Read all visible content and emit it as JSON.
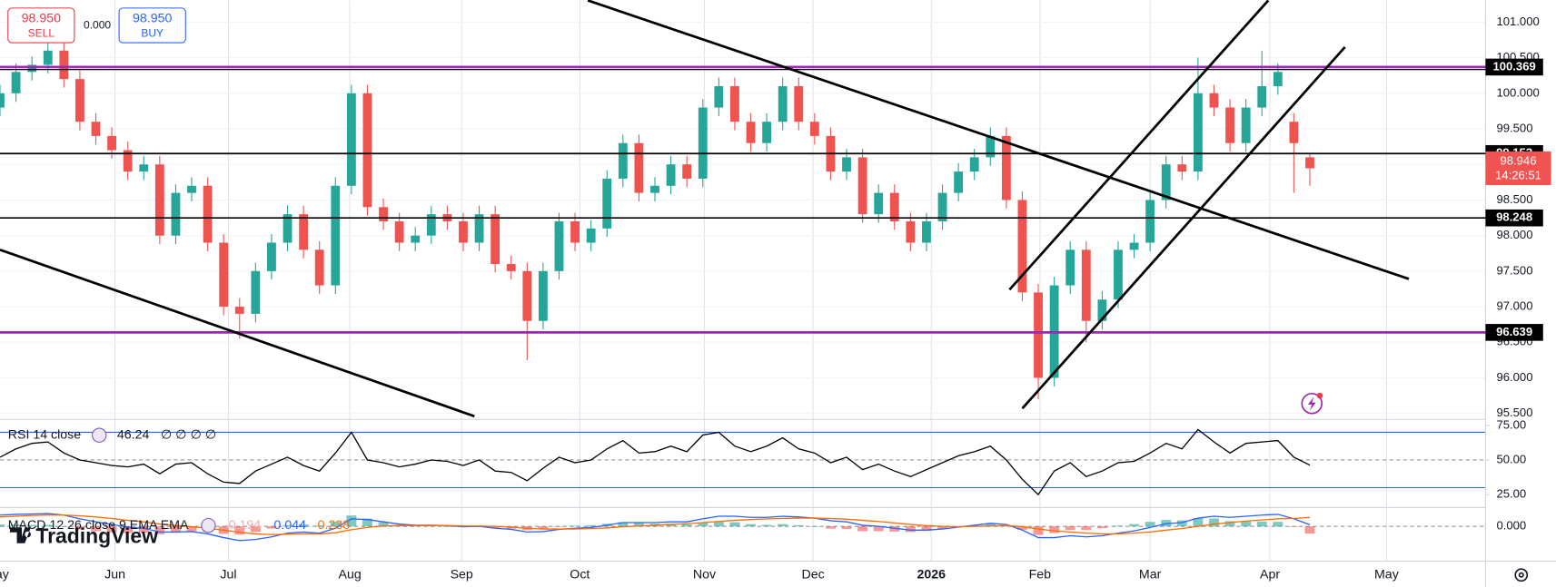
{
  "trade_panel": {
    "sell_price": "98.950",
    "sell_label": "SELL",
    "spread": "0.000",
    "buy_price": "98.950",
    "buy_label": "BUY"
  },
  "branding": "TradingView",
  "chart_data": {
    "type": "candlestick",
    "up_color": "#26a69a",
    "down_color": "#ef5350",
    "xlim": [
      0,
      93
    ],
    "xticks": [
      {
        "value": -0.2,
        "label": "May"
      },
      {
        "value": 7.2,
        "label": "Jun"
      },
      {
        "value": 14.3,
        "label": "Jul"
      },
      {
        "value": 21.9,
        "label": "Aug"
      },
      {
        "value": 28.9,
        "label": "Sep"
      },
      {
        "value": 36.3,
        "label": "Oct"
      },
      {
        "value": 44.1,
        "label": "Nov"
      },
      {
        "value": 50.9,
        "label": "Dec"
      },
      {
        "value": 58.3,
        "label": "2026",
        "bold": true
      },
      {
        "value": 65.1,
        "label": "Feb"
      },
      {
        "value": 72.0,
        "label": "Mar"
      },
      {
        "value": 79.5,
        "label": "Apr"
      },
      {
        "value": 86.8,
        "label": "May"
      }
    ],
    "ylim": [
      95.43,
      101.31
    ],
    "yticks": [
      {
        "value": 95.5,
        "label": "95.500"
      },
      {
        "value": 96,
        "label": "96.000"
      },
      {
        "value": 96.5,
        "label": "96.500"
      },
      {
        "value": 97,
        "label": "97.000"
      },
      {
        "value": 97.5,
        "label": "97.500"
      },
      {
        "value": 98,
        "label": "98.000"
      },
      {
        "value": 98.5,
        "label": "98.500"
      },
      {
        "value": 99,
        "label": "99.000"
      },
      {
        "value": 99.5,
        "label": "99.500"
      },
      {
        "value": 100,
        "label": "100.000"
      },
      {
        "value": 100.5,
        "label": "100.500"
      },
      {
        "value": 101,
        "label": "101.000"
      }
    ],
    "candles": {
      "open": [
        99.8,
        100.0,
        100.3,
        100.4,
        100.6,
        100.2,
        99.6,
        99.4,
        99.2,
        98.9,
        99.0,
        98.0,
        98.6,
        98.7,
        97.9,
        97.0,
        96.9,
        97.5,
        97.9,
        98.3,
        97.8,
        97.3,
        98.7,
        100.0,
        98.4,
        98.2,
        97.9,
        98.0,
        98.3,
        98.2,
        97.9,
        98.3,
        97.6,
        97.5,
        96.8,
        97.5,
        98.2,
        97.9,
        98.1,
        98.8,
        99.3,
        98.6,
        98.7,
        99.0,
        98.8,
        99.8,
        100.1,
        99.6,
        99.3,
        99.6,
        100.1,
        99.6,
        99.4,
        98.9,
        99.1,
        98.3,
        98.6,
        98.2,
        97.9,
        98.2,
        98.6,
        98.9,
        99.1,
        99.4,
        98.5,
        97.2,
        96.0,
        97.3,
        97.8,
        96.8,
        97.1,
        97.8,
        97.9,
        98.5,
        99.0,
        98.9,
        100.0,
        99.8,
        99.3,
        99.8,
        100.1,
        99.6,
        99.1
      ],
      "high": [
        100.12,
        100.42,
        100.52,
        100.72,
        100.72,
        100.32,
        99.72,
        99.52,
        99.32,
        99.12,
        99.12,
        98.72,
        98.82,
        98.82,
        98.02,
        97.12,
        97.62,
        98.02,
        98.42,
        98.42,
        97.92,
        98.82,
        100.12,
        100.12,
        98.52,
        98.32,
        98.12,
        98.42,
        98.42,
        98.32,
        98.42,
        98.42,
        97.72,
        97.62,
        97.62,
        98.32,
        98.32,
        98.22,
        98.92,
        99.42,
        99.42,
        98.82,
        99.12,
        99.12,
        99.92,
        100.22,
        100.22,
        99.72,
        99.72,
        100.22,
        100.22,
        99.72,
        99.52,
        99.22,
        99.22,
        98.72,
        98.72,
        98.32,
        98.32,
        98.72,
        99.02,
        99.22,
        99.52,
        99.52,
        98.62,
        97.32,
        97.42,
        97.92,
        97.92,
        97.22,
        97.92,
        98.02,
        98.62,
        99.12,
        99.12,
        100.5,
        100.12,
        99.92,
        99.92,
        100.6,
        100.42,
        99.72,
        99.15
      ],
      "low": [
        99.68,
        99.88,
        100.18,
        100.28,
        100.08,
        99.48,
        99.28,
        99.08,
        98.78,
        98.78,
        97.88,
        97.88,
        98.48,
        97.78,
        96.88,
        96.55,
        96.78,
        97.38,
        97.78,
        97.68,
        97.18,
        97.18,
        98.58,
        98.28,
        98.08,
        97.78,
        97.78,
        97.88,
        98.08,
        97.78,
        97.78,
        97.48,
        97.38,
        96.25,
        96.68,
        97.38,
        97.78,
        97.78,
        97.98,
        98.68,
        98.48,
        98.48,
        98.58,
        98.68,
        98.68,
        99.68,
        99.48,
        99.18,
        99.18,
        99.48,
        99.48,
        99.28,
        98.78,
        98.78,
        98.18,
        98.18,
        98.08,
        97.78,
        97.78,
        98.08,
        98.48,
        98.78,
        98.98,
        98.38,
        97.08,
        95.7,
        95.88,
        97.18,
        96.5,
        96.68,
        96.98,
        97.68,
        97.78,
        98.38,
        98.78,
        98.78,
        99.68,
        99.18,
        99.18,
        99.68,
        99.98,
        98.6,
        98.7
      ],
      "close": [
        100.0,
        100.3,
        100.4,
        100.6,
        100.2,
        99.6,
        99.4,
        99.2,
        98.9,
        99.0,
        98.0,
        98.6,
        98.7,
        97.9,
        97.0,
        96.9,
        97.5,
        97.9,
        98.3,
        97.8,
        97.3,
        98.7,
        100.0,
        98.4,
        98.2,
        97.9,
        98.0,
        98.3,
        98.2,
        97.9,
        98.3,
        97.6,
        97.5,
        96.8,
        97.5,
        98.2,
        97.9,
        98.1,
        98.8,
        99.3,
        98.6,
        98.7,
        99.0,
        98.8,
        99.8,
        100.1,
        99.6,
        99.3,
        99.6,
        100.1,
        99.6,
        99.4,
        98.9,
        99.1,
        98.3,
        98.6,
        98.2,
        97.9,
        98.2,
        98.6,
        98.9,
        99.1,
        99.4,
        98.5,
        97.2,
        96.0,
        97.3,
        97.8,
        96.8,
        97.1,
        97.8,
        97.9,
        98.5,
        99.0,
        98.9,
        100.0,
        99.8,
        99.3,
        99.8,
        100.1,
        100.3,
        99.3,
        98.946
      ]
    },
    "countdown": "14:26:51",
    "horizontal_lines": [
      {
        "value": 100.369,
        "color": "#9c27b0"
      },
      {
        "value": 99.153,
        "color": "#000000"
      },
      {
        "value": 98.248,
        "color": "#000000"
      },
      {
        "value": 96.639,
        "color": "#9c27b0"
      }
    ],
    "trend_lines": [
      {
        "x": [
          36.8,
          88.2
        ],
        "y": [
          101.306,
          97.39
        ]
      },
      {
        "x": [
          0,
          29.7
        ],
        "y": [
          97.8,
          95.46
        ]
      },
      {
        "x": [
          63.2,
          79.4
        ],
        "y": [
          97.24,
          101.306
        ]
      },
      {
        "x": [
          64.0,
          84.2
        ],
        "y": [
          95.57,
          100.65
        ]
      }
    ],
    "rsi": {
      "label": "RSI 14 close",
      "extra": "∅ ∅ ∅ ∅",
      "color": "#000000",
      "ylim": [
        15.6,
        78.6
      ],
      "yticks": [
        {
          "value": 25,
          "label": "25.00"
        },
        {
          "value": 50,
          "label": "50.00"
        },
        {
          "value": 75,
          "label": "75.00"
        }
      ],
      "bands": [
        70,
        30
      ],
      "middle": 50,
      "values": [
        52,
        58,
        62,
        63,
        55,
        50,
        48,
        46,
        45,
        47,
        40,
        47,
        48,
        40,
        34,
        33,
        42,
        47,
        52,
        46,
        42,
        55,
        70,
        50,
        48,
        45,
        47,
        50,
        49,
        46,
        50,
        42,
        41,
        35,
        44,
        52,
        48,
        50,
        58,
        64,
        55,
        56,
        60,
        56,
        68,
        70,
        60,
        56,
        60,
        66,
        58,
        55,
        48,
        52,
        43,
        47,
        42,
        38,
        43,
        48,
        53,
        56,
        60,
        50,
        36,
        25,
        42,
        48,
        38,
        42,
        48,
        49,
        55,
        62,
        58,
        72,
        63,
        55,
        62,
        63,
        64,
        52,
        46.24
      ]
    },
    "macd": {
      "label": "MACD 12 26 close 9 EMA EMA",
      "ylim": [
        -0.9,
        0.5
      ],
      "yticks": [
        {
          "value": 0,
          "label": "0.000"
        }
      ],
      "macd_color": "#2962ff",
      "signal_color": "#ff6d00",
      "histogram_up_color": "#26a69a",
      "histogram_down_color": "#ef5350",
      "macd": [
        0.3,
        0.32,
        0.33,
        0.34,
        0.3,
        0.2,
        0.12,
        0.05,
        -0.02,
        -0.05,
        -0.15,
        -0.15,
        -0.14,
        -0.2,
        -0.3,
        -0.38,
        -0.35,
        -0.28,
        -0.18,
        -0.15,
        -0.18,
        -0.05,
        0.2,
        0.18,
        0.12,
        0.06,
        0.03,
        0.03,
        0.02,
        -0.01,
        0.0,
        -0.05,
        -0.08,
        -0.15,
        -0.14,
        -0.08,
        -0.05,
        -0.03,
        0.03,
        0.1,
        0.1,
        0.1,
        0.12,
        0.12,
        0.2,
        0.27,
        0.27,
        0.24,
        0.24,
        0.27,
        0.25,
        0.22,
        0.15,
        0.12,
        0.03,
        0.0,
        -0.05,
        -0.1,
        -0.1,
        -0.07,
        -0.02,
        0.03,
        0.08,
        0.05,
        -0.1,
        -0.3,
        -0.3,
        -0.25,
        -0.28,
        -0.25,
        -0.18,
        -0.12,
        -0.03,
        0.07,
        0.1,
        0.22,
        0.27,
        0.24,
        0.27,
        0.3,
        0.32,
        0.2,
        0.044
      ],
      "signal": [
        0.25,
        0.27,
        0.29,
        0.3,
        0.3,
        0.28,
        0.25,
        0.21,
        0.16,
        0.12,
        0.06,
        0.02,
        -0.01,
        -0.05,
        -0.1,
        -0.16,
        -0.2,
        -0.22,
        -0.21,
        -0.2,
        -0.2,
        -0.17,
        -0.09,
        -0.03,
        0.01,
        0.02,
        0.02,
        0.02,
        0.02,
        0.01,
        0.01,
        0.0,
        -0.02,
        -0.05,
        -0.07,
        -0.07,
        -0.07,
        -0.06,
        -0.04,
        -0.01,
        0.01,
        0.03,
        0.05,
        0.07,
        0.1,
        0.13,
        0.16,
        0.18,
        0.2,
        0.21,
        0.22,
        0.22,
        0.21,
        0.19,
        0.16,
        0.13,
        0.09,
        0.05,
        0.02,
        0.0,
        -0.01,
        0,
        0.01,
        0.02,
        -0.01,
        -0.07,
        -0.12,
        -0.15,
        -0.18,
        -0.2,
        -0.2,
        -0.18,
        -0.15,
        -0.1,
        -0.06,
        0.0,
        0.06,
        0.1,
        0.14,
        0.17,
        0.2,
        0.21,
        0.238
      ],
      "histogram": [
        0.05,
        0.05,
        0.04,
        0.04,
        0,
        -0.08,
        -0.13,
        -0.16,
        -0.18,
        -0.17,
        -0.21,
        -0.17,
        -0.13,
        -0.15,
        -0.2,
        -0.22,
        -0.15,
        -0.06,
        0.03,
        0.05,
        0.02,
        0.12,
        0.29,
        0.21,
        0.11,
        0.04,
        0.01,
        0.01,
        0,
        -0.02,
        -0.01,
        -0.05,
        -0.06,
        -0.1,
        -0.07,
        -0.01,
        0.02,
        0.03,
        0.07,
        0.11,
        0.09,
        0.07,
        0.07,
        0.05,
        0.1,
        0.14,
        0.11,
        0.06,
        0.04,
        0.06,
        0.03,
        0,
        -0.06,
        -0.07,
        -0.13,
        -0.13,
        -0.14,
        -0.15,
        -0.12,
        -0.07,
        -0.01,
        0.03,
        0.07,
        0.03,
        -0.09,
        -0.23,
        -0.18,
        -0.1,
        -0.1,
        -0.05,
        0.02,
        0.06,
        0.12,
        0.17,
        0.16,
        0.22,
        0.21,
        0.14,
        0.13,
        0.13,
        0.12,
        -0.01,
        -0.194
      ]
    }
  }
}
